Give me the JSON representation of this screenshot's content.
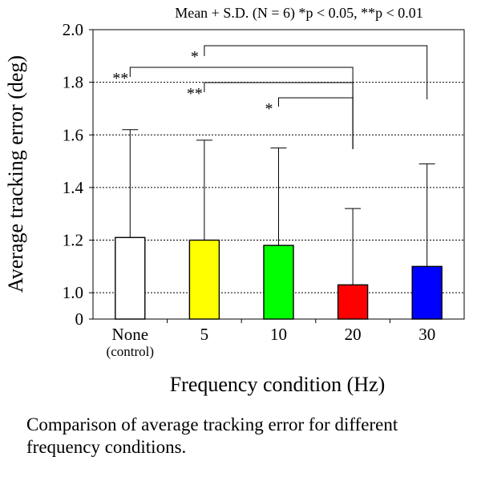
{
  "caption": "Comparison of average tracking error for different frequency conditions.",
  "chart_data": {
    "type": "bar",
    "title": "Mean + S.D. (N = 6) *p < 0.05, **p < 0.01",
    "xlabel": "Frequency condition (Hz)",
    "ylabel": "Average tracking error (deg)",
    "categories": [
      {
        "label": "None",
        "sublabel": "(control)"
      },
      {
        "label": "5",
        "sublabel": ""
      },
      {
        "label": "10",
        "sublabel": ""
      },
      {
        "label": "20",
        "sublabel": ""
      },
      {
        "label": "30",
        "sublabel": ""
      }
    ],
    "values": [
      1.21,
      1.2,
      1.18,
      1.03,
      1.1
    ],
    "errors": [
      0.41,
      0.38,
      0.37,
      0.29,
      0.39
    ],
    "colors": [
      "#ffffff",
      "#ffff00",
      "#00ff00",
      "#ff0000",
      "#0000ff"
    ],
    "axis_break": {
      "lower": 0,
      "upper": 0.9
    },
    "ylim": [
      0.9,
      2.0
    ],
    "yticks": [
      {
        "value": 0.9,
        "label": "0"
      },
      {
        "value": 1.0,
        "label": "1.0"
      },
      {
        "value": 1.2,
        "label": "1.2"
      },
      {
        "value": 1.4,
        "label": "1.4"
      },
      {
        "value": 1.6,
        "label": "1.6"
      },
      {
        "value": 1.8,
        "label": "1.8"
      },
      {
        "value": 2.0,
        "label": "2.0"
      }
    ],
    "grid": "dotted horizontal",
    "significance": [
      {
        "from": 0,
        "to": 3,
        "label": "**"
      },
      {
        "from": 1,
        "to": 4,
        "label": "*"
      },
      {
        "from": 1,
        "to": 3,
        "label": "**"
      },
      {
        "from": 2,
        "to": 3,
        "label": "*"
      }
    ]
  }
}
